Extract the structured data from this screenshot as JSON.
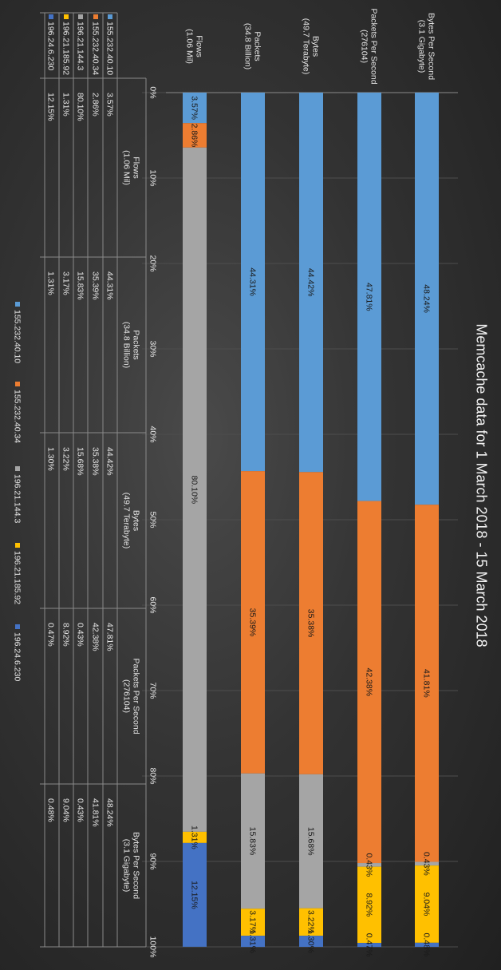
{
  "chart_data": {
    "type": "bar",
    "stacked": "percent",
    "title": "Memcache data for 1 March 2018 - 15 March 2018",
    "categories": [
      "Bytes Per Second\n(3.1 Gigabyte)",
      "Packets Per Second\n(276104)",
      "Bytes\n(49.7 Terabyte)",
      "Packets\n(34.8 Billion)",
      "Flows\n(1.06 Mil)"
    ],
    "axis_ticks": [
      "0%",
      "10%",
      "20%",
      "30%",
      "40%",
      "50%",
      "60%",
      "70%",
      "80%",
      "90%",
      "100%"
    ],
    "ylim": [
      0,
      100
    ],
    "gridlines": true,
    "legend_position": "bottom",
    "series": [
      {
        "name": "155.232.40.10",
        "color": "#5b9bd5",
        "values": [
          48.24,
          47.81,
          44.42,
          44.31,
          3.57
        ],
        "labels": [
          "48.24%",
          "47.81%",
          "44.42%",
          "44.31%",
          "3.57%"
        ]
      },
      {
        "name": "155.232.40.34",
        "color": "#ed7d31",
        "values": [
          41.81,
          42.38,
          35.38,
          35.39,
          2.86
        ],
        "labels": [
          "41.81%",
          "42.38%",
          "35.38%",
          "35.39%",
          "2.86%"
        ]
      },
      {
        "name": "196.21.144.3",
        "color": "#a5a5a5",
        "values": [
          0.43,
          0.43,
          15.68,
          15.83,
          80.1
        ],
        "labels": [
          "0.43%",
          "0.43%",
          "15.68%",
          "15.83%",
          "80.10%"
        ]
      },
      {
        "name": "196.21.185.92",
        "color": "#ffc000",
        "values": [
          9.04,
          8.92,
          3.22,
          3.17,
          1.31
        ],
        "labels": [
          "9.04%",
          "8.92%",
          "3.22%",
          "3.17%",
          "1.31%"
        ]
      },
      {
        "name": "196.24.6.230",
        "color": "#4472c4",
        "values": [
          0.48,
          0.47,
          1.3,
          1.31,
          12.15
        ],
        "labels": [
          "0.48%",
          "0.47%",
          "1.30%",
          "1.31%",
          "12.15%"
        ]
      }
    ],
    "data_table": {
      "columns": [
        "Flows\n(1.06 Mil)",
        "Packets\n(34.8 Billion)",
        "Bytes\n(49.7 Terabyte)",
        "Packets Per Second\n(276104)",
        "Bytes Per Second\n(3.1 Gigabyte)"
      ],
      "rows": [
        {
          "name": "155.232.40.10",
          "color": "#5b9bd5",
          "cells": [
            "3.57%",
            "44.31%",
            "44.42%",
            "47.81%",
            "48.24%"
          ]
        },
        {
          "name": "155.232.40.34",
          "color": "#ed7d31",
          "cells": [
            "2.86%",
            "35.39%",
            "35.38%",
            "42.38%",
            "41.81%"
          ]
        },
        {
          "name": "196.21.144.3",
          "color": "#a5a5a5",
          "cells": [
            "80.10%",
            "15.83%",
            "15.68%",
            "0.43%",
            "0.43%"
          ]
        },
        {
          "name": "196.21.185.92",
          "color": "#ffc000",
          "cells": [
            "1.31%",
            "3.17%",
            "3.22%",
            "8.92%",
            "9.04%"
          ]
        },
        {
          "name": "196.24.6.230",
          "color": "#4472c4",
          "cells": [
            "12.15%",
            "1.31%",
            "1.30%",
            "0.47%",
            "0.48%"
          ]
        }
      ]
    }
  }
}
